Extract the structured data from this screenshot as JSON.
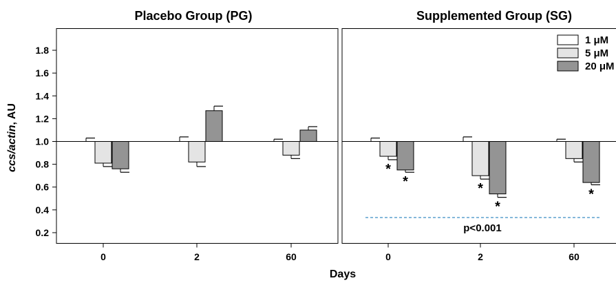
{
  "chart_data": {
    "type": "bar",
    "ylabel_italic": "ccs/actin",
    "ylabel_rest": ", AU",
    "xlabel": "Days",
    "ylim": [
      0.1,
      2.0
    ],
    "yticks": [
      0.2,
      0.4,
      0.6,
      0.8,
      1.0,
      1.2,
      1.4,
      1.6,
      1.8
    ],
    "ytick_labels": [
      "0.2",
      "0.4",
      "0.6",
      "0.8",
      "1.0",
      "1.2",
      "1.4",
      "1.6",
      "1.8"
    ],
    "baseline": 1.0,
    "categories": [
      "0",
      "2",
      "60"
    ],
    "legend": [
      {
        "label": "1 μM",
        "color": "#ffffff"
      },
      {
        "label": "5 μM",
        "color": "#e4e4e4"
      },
      {
        "label": "20 μM",
        "color": "#949494"
      }
    ],
    "panels": [
      {
        "title": "Placebo Group (PG)",
        "series": [
          {
            "name": "1 μM",
            "values": [
              1.0,
              1.0,
              1.0
            ],
            "errors": [
              0.03,
              0.04,
              0.02
            ]
          },
          {
            "name": "5 μM",
            "values": [
              0.81,
              0.82,
              0.88
            ],
            "errors": [
              0.03,
              0.04,
              0.03
            ]
          },
          {
            "name": "20 μM",
            "values": [
              0.76,
              1.27,
              1.1
            ],
            "errors": [
              0.03,
              0.04,
              0.03
            ]
          }
        ],
        "stars": []
      },
      {
        "title": "Supplemented Group (SG)",
        "series": [
          {
            "name": "1 μM",
            "values": [
              1.0,
              1.0,
              1.0
            ],
            "errors": [
              0.03,
              0.04,
              0.02
            ]
          },
          {
            "name": "5 μM",
            "values": [
              0.87,
              0.7,
              0.85
            ],
            "errors": [
              0.03,
              0.03,
              0.03
            ]
          },
          {
            "name": "20 μM",
            "values": [
              0.75,
              0.54,
              0.64
            ],
            "errors": [
              0.02,
              0.03,
              0.02
            ]
          }
        ],
        "stars": [
          {
            "category": 0,
            "series": 1
          },
          {
            "category": 0,
            "series": 2
          },
          {
            "category": 1,
            "series": 1
          },
          {
            "category": 1,
            "series": 2
          },
          {
            "category": 2,
            "series": 2
          }
        ],
        "star_text": "*",
        "annotation": "p<0.001"
      }
    ]
  }
}
